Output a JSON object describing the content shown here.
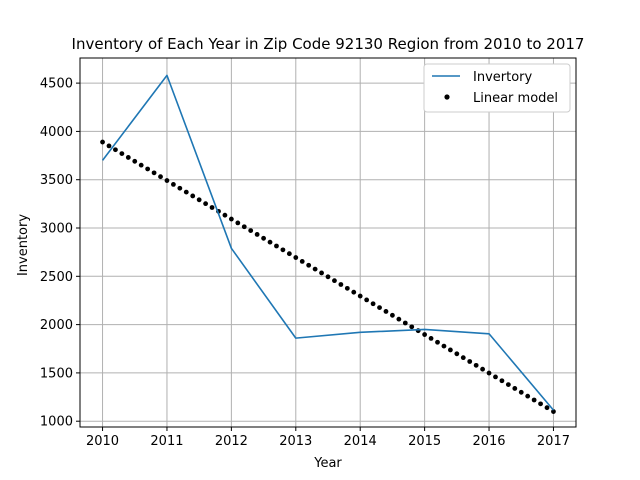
{
  "chart_data": {
    "type": "line",
    "title": "Inventory of Each Year in Zip Code 92130 Region from 2010 to 2017",
    "xlabel": "Year",
    "ylabel": "Inventory",
    "x": [
      2010,
      2011,
      2012,
      2013,
      2014,
      2015,
      2016,
      2017
    ],
    "xlim": [
      2009.65,
      2017.35
    ],
    "ylim": [
      940,
      4760
    ],
    "xticks": [
      2010,
      2011,
      2012,
      2013,
      2014,
      2015,
      2016,
      2017
    ],
    "yticks": [
      1000,
      1500,
      2000,
      2500,
      3000,
      3500,
      4000,
      4500
    ],
    "grid": true,
    "legend_position": "top-right",
    "series": [
      {
        "name": "Invertory",
        "style": "line",
        "color": "#1f77b4",
        "values": [
          3700,
          4580,
          2790,
          1860,
          1920,
          1950,
          1905,
          1115
        ]
      },
      {
        "name": "Linear model",
        "style": "dots",
        "color": "#000000",
        "x_start": 2010,
        "x_end": 2017,
        "y_start": 3890,
        "y_end": 1100,
        "point_count": 71
      }
    ]
  }
}
